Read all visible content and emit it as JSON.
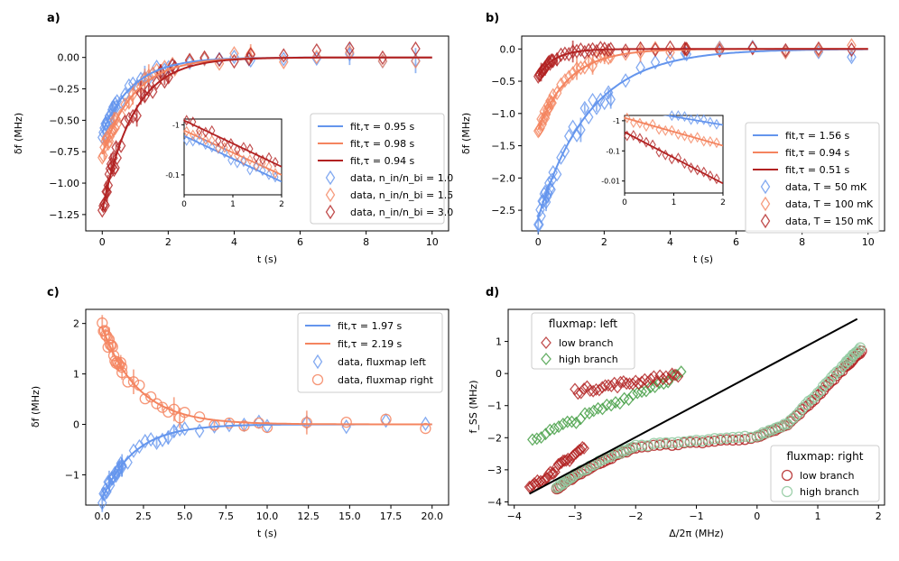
{
  "figure": {
    "panel_labels": [
      "a)",
      "b)",
      "c)",
      "d)"
    ]
  },
  "colors": {
    "blue": "#6495ed",
    "orange": "#f4845f",
    "red": "#b22222",
    "green": "#3f9b3f",
    "lightgreen": "#8fc99f",
    "black": "#000000"
  },
  "chart_data": [
    {
      "id": "a",
      "type": "line",
      "xlabel": "t (s)",
      "ylabel": "δf (MHz)",
      "xlim": [
        -0.5,
        10.5
      ],
      "ylim": [
        -1.38,
        0.17
      ],
      "xticks": [
        0,
        2,
        4,
        6,
        8,
        10
      ],
      "xtick_labels": [
        "0",
        "2",
        "4",
        "6",
        "8",
        "10"
      ],
      "yticks": [
        0,
        -0.25,
        -0.5,
        -0.75,
        -1.0,
        -1.25
      ],
      "ytick_labels": [
        "0.00",
        "−0.25",
        "−0.50",
        "−0.75",
        "−1.00",
        "−1.25"
      ],
      "legend": {
        "position": "right",
        "entries": [
          "fit,τ = 0.95 s",
          "fit,τ = 0.98 s",
          "fit,τ = 0.94 s",
          "data, n_in/n_bi = 1.0",
          "data, n_in/n_bi = 1.5",
          "data, n_in/n_bi = 3.0"
        ]
      },
      "series": [
        {
          "name": "fit,τ = 0.95 s",
          "kind": "fit",
          "A": -0.6,
          "tau": 0.95,
          "color": "blue"
        },
        {
          "name": "fit,τ = 0.98 s",
          "kind": "fit",
          "A": -0.77,
          "tau": 0.98,
          "color": "orange"
        },
        {
          "name": "fit,τ = 0.94 s",
          "kind": "fit",
          "A": -1.22,
          "tau": 0.94,
          "color": "red"
        },
        {
          "name": "data, n_in/n_bi = 1.0",
          "kind": "data",
          "A": -0.6,
          "tau": 0.95,
          "color": "blue"
        },
        {
          "name": "data, n_in/n_bi = 1.5",
          "kind": "data",
          "A": -0.77,
          "tau": 0.98,
          "color": "orange"
        },
        {
          "name": "data, n_in/n_bi = 3.0",
          "kind": "data",
          "A": -1.22,
          "tau": 0.94,
          "color": "red"
        }
      ],
      "inset": {
        "xlim": [
          0,
          2
        ],
        "yscale": "log",
        "xticks": [
          0,
          1,
          2
        ],
        "xtick_labels": [
          "0",
          "1",
          "2"
        ],
        "yticks": [
          -0.1,
          -1
        ],
        "ytick_labels": [
          "-0.1",
          "-1"
        ]
      }
    },
    {
      "id": "b",
      "type": "line",
      "xlabel": "t (s)",
      "ylabel": "δf (MHz)",
      "xlim": [
        -0.5,
        10.5
      ],
      "ylim": [
        -2.82,
        0.2
      ],
      "xticks": [
        0,
        2,
        4,
        6,
        8,
        10
      ],
      "xtick_labels": [
        "0",
        "2",
        "4",
        "6",
        "8",
        "10"
      ],
      "yticks": [
        0,
        -0.5,
        -1.0,
        -1.5,
        -2.0,
        -2.5
      ],
      "ytick_labels": [
        "0.0",
        "−0.5",
        "−1.0",
        "−1.5",
        "−2.0",
        "−2.5"
      ],
      "legend": {
        "position": "right",
        "entries": [
          "fit,τ = 1.56 s",
          "fit,τ = 0.94 s",
          "fit,τ = 0.51 s",
          "data, T = 50 mK",
          "data, T = 100 mK",
          "data, T = 150 mK"
        ]
      },
      "series": [
        {
          "name": "fit,τ = 1.56 s",
          "kind": "fit",
          "A": -2.62,
          "tau": 1.56,
          "color": "blue"
        },
        {
          "name": "fit,τ = 0.94 s",
          "kind": "fit",
          "A": -1.25,
          "tau": 0.94,
          "color": "orange"
        },
        {
          "name": "fit,τ = 0.51 s",
          "kind": "fit",
          "A": -0.42,
          "tau": 0.51,
          "color": "red"
        },
        {
          "name": "data, T = 50 mK",
          "kind": "data",
          "A": -2.62,
          "tau": 1.56,
          "color": "blue"
        },
        {
          "name": "data, T = 100 mK",
          "kind": "data",
          "A": -1.25,
          "tau": 0.94,
          "color": "orange"
        },
        {
          "name": "data, T = 150 mK",
          "kind": "data",
          "A": -0.42,
          "tau": 0.51,
          "color": "red"
        }
      ],
      "inset": {
        "xlim": [
          0,
          2
        ],
        "yscale": "log",
        "xticks": [
          0,
          1,
          2
        ],
        "xtick_labels": [
          "0",
          "1",
          "2"
        ],
        "yticks": [
          -0.01,
          -0.1,
          -1
        ],
        "ytick_labels": [
          "-0.01",
          "-0.1",
          "-1"
        ]
      }
    },
    {
      "id": "c",
      "type": "line",
      "xlabel": "t (s)",
      "ylabel": "δf (MHz)",
      "xlim": [
        -1.0,
        21.0
      ],
      "ylim": [
        -1.6,
        2.28
      ],
      "xticks": [
        0,
        2.5,
        5,
        7.5,
        10,
        12.5,
        15,
        17.5,
        20
      ],
      "xtick_labels": [
        "0.0",
        "2.5",
        "5.0",
        "7.5",
        "10.0",
        "12.5",
        "15.0",
        "17.5",
        "20.0"
      ],
      "yticks": [
        2,
        1,
        0,
        -1
      ],
      "ytick_labels": [
        "2",
        "1",
        "0",
        "−1"
      ],
      "legend": {
        "position": "top-right",
        "entries": [
          "fit,τ = 1.97 s",
          "fit,τ = 2.19 s",
          "data, fluxmap left",
          "data, fluxmap right"
        ]
      },
      "series": [
        {
          "name": "fit,τ = 1.97 s",
          "kind": "fit",
          "A": -1.47,
          "tau": 1.97,
          "color": "blue"
        },
        {
          "name": "fit,τ = 2.19 s",
          "kind": "fit",
          "A": 1.92,
          "tau": 2.19,
          "color": "orange"
        },
        {
          "name": "data, fluxmap left",
          "kind": "data",
          "A": -1.47,
          "tau": 1.97,
          "color": "blue",
          "marker": "diamond"
        },
        {
          "name": "data, fluxmap right",
          "kind": "data",
          "A": 1.92,
          "tau": 2.19,
          "color": "orange",
          "marker": "circle"
        }
      ]
    },
    {
      "id": "d",
      "type": "scatter",
      "xlabel": "Δ/2π (MHz)",
      "ylabel": "f_SS (MHz)",
      "xlim": [
        -4.1,
        2.1
      ],
      "ylim": [
        -4.1,
        2.0
      ],
      "xticks": [
        -4,
        -3,
        -2,
        -1,
        0,
        1,
        2
      ],
      "xtick_labels": [
        "−4",
        "−3",
        "−2",
        "−1",
        "0",
        "1",
        "2"
      ],
      "yticks": [
        1,
        0,
        -1,
        -2,
        -3,
        -4
      ],
      "ytick_labels": [
        "1",
        "0",
        "−1",
        "−2",
        "−3",
        "−4"
      ],
      "legend_left": {
        "title": "fluxmap: left",
        "position": "top-left",
        "entries": [
          "low branch",
          "high branch"
        ]
      },
      "legend_right": {
        "title": "fluxmap: right",
        "position": "bottom-right",
        "entries": [
          "low branch",
          "high branch"
        ]
      },
      "reference_line": {
        "x": [
          -3.75,
          1.65
        ],
        "y": [
          -3.75,
          1.7
        ],
        "color": "black"
      },
      "series": [
        {
          "name": "fluxmap left low branch",
          "marker": "diamond",
          "color": "red",
          "segments": [
            [
              -3.75,
              -3.6,
              -2.85,
              -2.3
            ],
            [
              -3.0,
              -0.55,
              -1.3,
              -0.05
            ]
          ]
        },
        {
          "name": "fluxmap left high branch",
          "marker": "diamond",
          "color": "green",
          "segments": [
            [
              -3.7,
              -2.05,
              -1.25,
              0.0
            ]
          ]
        },
        {
          "name": "fluxmap right low branch",
          "marker": "circle",
          "color": "red",
          "points": [
            [
              -3.3,
              -3.6
            ],
            [
              -3.0,
              -3.2
            ],
            [
              -2.5,
              -2.7
            ],
            [
              -2.0,
              -2.3
            ],
            [
              -1.0,
              -2.15
            ],
            [
              0.0,
              -2.0
            ],
            [
              0.5,
              -1.6
            ],
            [
              1.0,
              -0.7
            ],
            [
              1.45,
              0.2
            ],
            [
              1.72,
              0.7
            ]
          ]
        },
        {
          "name": "fluxmap right high branch",
          "marker": "circle",
          "color": "lightgreen",
          "points": [
            [
              -3.3,
              -3.55
            ],
            [
              -3.0,
              -3.15
            ],
            [
              -2.5,
              -2.65
            ],
            [
              -2.0,
              -2.25
            ],
            [
              -1.0,
              -2.1
            ],
            [
              0.0,
              -1.95
            ],
            [
              0.5,
              -1.55
            ],
            [
              1.0,
              -0.6
            ],
            [
              1.45,
              0.3
            ],
            [
              1.7,
              0.8
            ]
          ]
        }
      ]
    }
  ]
}
